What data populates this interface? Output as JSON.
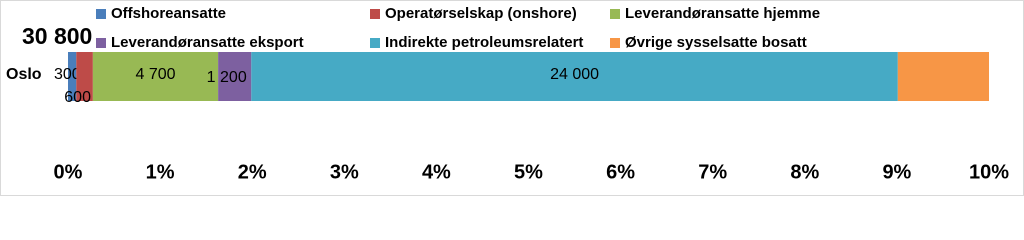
{
  "chart_data": {
    "type": "stacked-bar-horizontal",
    "total": "30 800",
    "categories": [
      "Oslo"
    ],
    "series": [
      {
        "name": "Offshoreansatte",
        "color": "#4a7ebb",
        "values": [
          0.09
        ],
        "count": {
          "value": 300,
          "label": "300"
        }
      },
      {
        "name": "Operatørselskap (onshore)",
        "color": "#be4b48",
        "values": [
          0.18
        ],
        "count": {
          "value": 600,
          "label": "600"
        }
      },
      {
        "name": "Leverandøransatte hjemme",
        "color": "#98b954",
        "values": [
          1.36
        ],
        "count": {
          "value": 4700,
          "label": "4 700"
        }
      },
      {
        "name": "Leverandøransatte eksport",
        "color": "#7d60a0",
        "values": [
          0.36
        ],
        "count": {
          "value": 1200,
          "label": "1 200"
        }
      },
      {
        "name": "Indirekte petroleumsrelatert",
        "color": "#46aac5",
        "values": [
          7.02
        ],
        "count": {
          "value": 24000,
          "label": "24 000"
        }
      },
      {
        "name": "Øvrige sysselsatte bosatt",
        "color": "#f79646",
        "values": [
          0.99
        ]
      }
    ],
    "xlim": [
      0,
      10
    ],
    "xticks": [
      {
        "value": 0,
        "label": "0%"
      },
      {
        "value": 1,
        "label": "1%"
      },
      {
        "value": 2,
        "label": "2%"
      },
      {
        "value": 3,
        "label": "3%"
      },
      {
        "value": 4,
        "label": "4%"
      },
      {
        "value": 5,
        "label": "5%"
      },
      {
        "value": 6,
        "label": "6%"
      },
      {
        "value": 7,
        "label": "7%"
      },
      {
        "value": 8,
        "label": "8%"
      },
      {
        "value": 9,
        "label": "9%"
      },
      {
        "value": 10,
        "label": "10%"
      }
    ]
  }
}
